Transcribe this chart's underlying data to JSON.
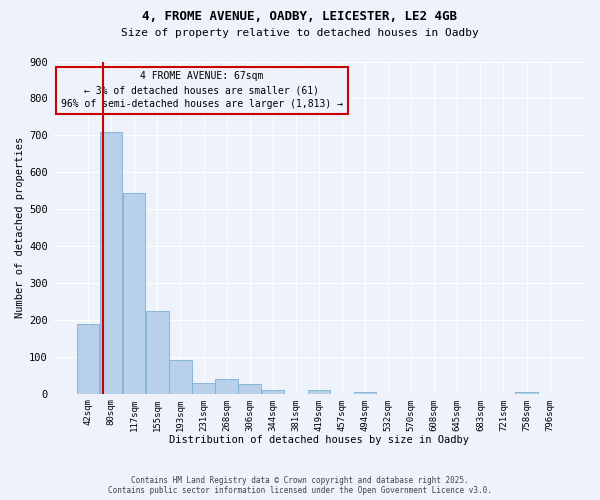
{
  "title_line1": "4, FROME AVENUE, OADBY, LEICESTER, LE2 4GB",
  "title_line2": "Size of property relative to detached houses in Oadby",
  "xlabel": "Distribution of detached houses by size in Oadby",
  "ylabel": "Number of detached properties",
  "bar_labels": [
    "42sqm",
    "80sqm",
    "117sqm",
    "155sqm",
    "193sqm",
    "231sqm",
    "268sqm",
    "306sqm",
    "344sqm",
    "381sqm",
    "419sqm",
    "457sqm",
    "494sqm",
    "532sqm",
    "570sqm",
    "608sqm",
    "645sqm",
    "683sqm",
    "721sqm",
    "758sqm",
    "796sqm"
  ],
  "bar_values": [
    190,
    710,
    545,
    225,
    90,
    30,
    40,
    25,
    10,
    0,
    10,
    0,
    5,
    0,
    0,
    0,
    0,
    0,
    0,
    5,
    0
  ],
  "bar_color": "#b8d0ea",
  "bar_edge_color": "#7aafd4",
  "ylim": [
    0,
    900
  ],
  "yticks": [
    0,
    100,
    200,
    300,
    400,
    500,
    600,
    700,
    800,
    900
  ],
  "marker_line_color": "#cc0000",
  "annotation_title": "4 FROME AVENUE: 67sqm",
  "annotation_line1": "← 3% of detached houses are smaller (61)",
  "annotation_line2": "96% of semi-detached houses are larger (1,813) →",
  "annotation_box_color": "#cc0000",
  "background_color": "#edf2fb",
  "grid_color": "#ffffff",
  "footer_line1": "Contains HM Land Registry data © Crown copyright and database right 2025.",
  "footer_line2": "Contains public sector information licensed under the Open Government Licence v3.0."
}
